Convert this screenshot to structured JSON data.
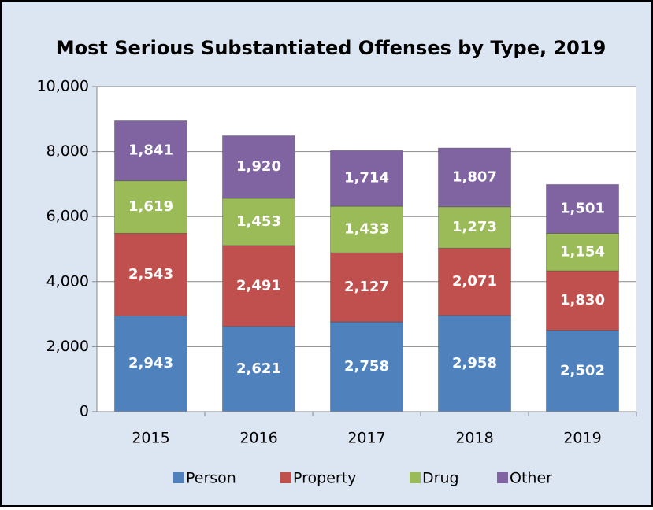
{
  "chart_data": {
    "type": "stacked_bar",
    "title": "Most Serious Substantiated Offenses by Type, 2019",
    "categories": [
      "2015",
      "2016",
      "2017",
      "2018",
      "2019"
    ],
    "series": [
      {
        "name": "Person",
        "color": "#4f81bd",
        "values": [
          2943,
          2621,
          2758,
          2958,
          2502
        ],
        "value_labels": [
          "2,943",
          "2,621",
          "2,758",
          "2,958",
          "2,502"
        ]
      },
      {
        "name": "Property",
        "color": "#c0504d",
        "values": [
          2543,
          2491,
          2127,
          2071,
          1830
        ],
        "value_labels": [
          "2,543",
          "2,491",
          "2,127",
          "2,071",
          "1,830"
        ]
      },
      {
        "name": "Drug",
        "color": "#9bbb59",
        "values": [
          1619,
          1453,
          1433,
          1273,
          1154
        ],
        "value_labels": [
          "1,619",
          "1,453",
          "1,433",
          "1,273",
          "1,154"
        ]
      },
      {
        "name": "Other",
        "color": "#8064a2",
        "values": [
          1841,
          1920,
          1714,
          1807,
          1501
        ],
        "value_labels": [
          "1,841",
          "1,920",
          "1,714",
          "1,807",
          "1,501"
        ]
      }
    ],
    "ylim": [
      0,
      10000
    ],
    "yticks": [
      0,
      {
        "value": 2000,
        "label": "2,000"
      },
      {
        "value": 4000,
        "label": "4,000"
      },
      {
        "value": 6000,
        "label": "6,000"
      },
      {
        "value": 8000,
        "label": "8,000"
      },
      {
        "value": 10000,
        "label": "10,000"
      }
    ],
    "grid": true,
    "legend": "bottom"
  }
}
